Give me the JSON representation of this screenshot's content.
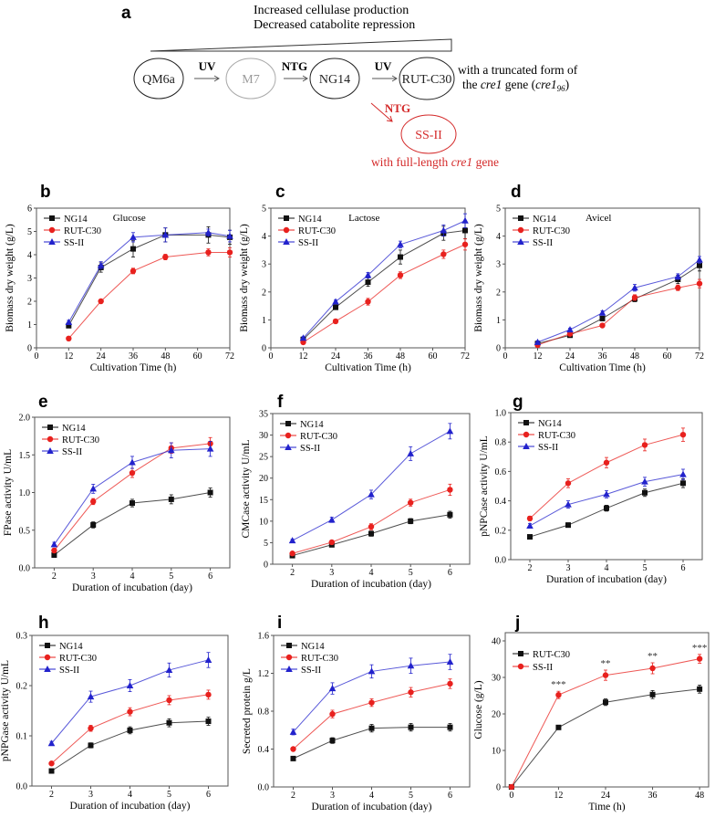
{
  "diagram": {
    "panel_label": "a",
    "top_line1": "Increased cellulase production",
    "top_line2": "Decreased catabolite repression",
    "nodes": [
      "QM6a",
      "M7",
      "NG14",
      "RUT-C30",
      "SS-II"
    ],
    "arrow_labels": [
      "UV",
      "NTG",
      "UV",
      "NTG"
    ],
    "rut_note_line1": "with a truncated form of",
    "rut_note_line2_parts": [
      "the ",
      "cre1",
      " gene (",
      "cre1",
      "96",
      ")"
    ],
    "ss_note_parts": [
      "with full-length ",
      "cre1",
      " gene"
    ],
    "colors": {
      "black": "#222222",
      "gray": "#9a9a9a",
      "red": "#d42a2a"
    }
  },
  "chart_data": [
    {
      "id": "b",
      "panel_label": "b",
      "type": "line",
      "title": "Glucose",
      "xlabel": "Cultivation Time (h)",
      "ylabel": "Biomass dry weight (g/L)",
      "xlim": [
        0,
        72
      ],
      "ylim": [
        0,
        6
      ],
      "xticks": [
        0,
        12,
        24,
        36,
        48,
        60,
        72
      ],
      "yticks": [
        0,
        1,
        2,
        3,
        4,
        5,
        6
      ],
      "ytick_fmt": 0,
      "x": [
        12,
        24,
        36,
        48,
        64,
        72
      ],
      "series": [
        {
          "name": "NG14",
          "marker": "square",
          "color": "#111111",
          "values": [
            0.95,
            3.45,
            4.25,
            4.85,
            4.85,
            4.75
          ],
          "err": [
            0.08,
            0.2,
            0.35,
            0.3,
            0.35,
            0.3
          ]
        },
        {
          "name": "RUT-C30",
          "marker": "circle",
          "color": "#e8211e",
          "values": [
            0.4,
            2.0,
            3.3,
            3.9,
            4.1,
            4.1
          ],
          "err": [
            0.05,
            0.08,
            0.12,
            0.12,
            0.15,
            0.2
          ]
        },
        {
          "name": "SS-II",
          "marker": "triangle",
          "color": "#2222cc",
          "values": [
            1.1,
            3.55,
            4.75,
            4.85,
            4.95,
            4.8
          ],
          "err": [
            0.08,
            0.15,
            0.2,
            0.3,
            0.15,
            0.25
          ]
        }
      ]
    },
    {
      "id": "c",
      "panel_label": "c",
      "type": "line",
      "title": "Lactose",
      "xlabel": "Cultivation Time (h)",
      "ylabel": "Biomass dry weight (g/L)",
      "xlim": [
        0,
        72
      ],
      "ylim": [
        0,
        5
      ],
      "xticks": [
        0,
        12,
        24,
        36,
        48,
        60,
        72
      ],
      "yticks": [
        0,
        1,
        2,
        3,
        4,
        5
      ],
      "ytick_fmt": 0,
      "x": [
        12,
        24,
        36,
        48,
        64,
        72
      ],
      "series": [
        {
          "name": "NG14",
          "marker": "square",
          "color": "#111111",
          "values": [
            0.3,
            1.45,
            2.35,
            3.25,
            4.1,
            4.2
          ],
          "err": [
            0.05,
            0.08,
            0.15,
            0.25,
            0.25,
            0.3
          ]
        },
        {
          "name": "RUT-C30",
          "marker": "circle",
          "color": "#e8211e",
          "values": [
            0.2,
            0.95,
            1.65,
            2.6,
            3.35,
            3.7
          ],
          "err": [
            0.05,
            0.05,
            0.12,
            0.12,
            0.15,
            0.2
          ]
        },
        {
          "name": "SS-II",
          "marker": "triangle",
          "color": "#2222cc",
          "values": [
            0.35,
            1.65,
            2.6,
            3.7,
            4.2,
            4.55
          ],
          "err": [
            0.05,
            0.06,
            0.1,
            0.12,
            0.2,
            0.25
          ]
        }
      ]
    },
    {
      "id": "d",
      "panel_label": "d",
      "type": "line",
      "title": "Avicel",
      "xlabel": "Cultivation Time (h)",
      "ylabel": "Biomass dry weight (g/L)",
      "xlim": [
        0,
        72
      ],
      "ylim": [
        0,
        5
      ],
      "xticks": [
        0,
        12,
        24,
        36,
        48,
        60,
        72
      ],
      "yticks": [
        0,
        1,
        2,
        3,
        4,
        5
      ],
      "ytick_fmt": 0,
      "x": [
        12,
        24,
        36,
        48,
        64,
        72
      ],
      "series": [
        {
          "name": "NG14",
          "marker": "square",
          "color": "#111111",
          "values": [
            0.15,
            0.45,
            1.05,
            1.75,
            2.45,
            2.95
          ],
          "err": [
            0.05,
            0.05,
            0.08,
            0.1,
            0.15,
            0.2
          ]
        },
        {
          "name": "RUT-C30",
          "marker": "circle",
          "color": "#e8211e",
          "values": [
            0.1,
            0.5,
            0.8,
            1.8,
            2.15,
            2.3
          ],
          "err": [
            0.05,
            0.05,
            0.06,
            0.1,
            0.1,
            0.15
          ]
        },
        {
          "name": "SS-II",
          "marker": "triangle",
          "color": "#2222cc",
          "values": [
            0.2,
            0.65,
            1.25,
            2.15,
            2.55,
            3.15
          ],
          "err": [
            0.05,
            0.05,
            0.08,
            0.12,
            0.1,
            0.12
          ]
        }
      ]
    },
    {
      "id": "e",
      "panel_label": "e",
      "type": "line",
      "title": "",
      "xlabel": "Duration of incubation (day)",
      "ylabel": "FPase activity U/mL",
      "xlim": [
        1.5,
        6.5
      ],
      "ylim": [
        0,
        2
      ],
      "xticks": [
        2,
        3,
        4,
        5,
        6
      ],
      "yticks": [
        0,
        0.5,
        1,
        1.5,
        2
      ],
      "ytick_fmt": 1,
      "x": [
        2,
        3,
        4,
        5,
        6
      ],
      "series": [
        {
          "name": "NG14",
          "marker": "square",
          "color": "#111111",
          "values": [
            0.17,
            0.57,
            0.86,
            0.91,
            1.0
          ],
          "err": [
            0.03,
            0.04,
            0.05,
            0.06,
            0.06
          ]
        },
        {
          "name": "RUT-C30",
          "marker": "circle",
          "color": "#e8211e",
          "values": [
            0.23,
            0.88,
            1.26,
            1.59,
            1.65
          ],
          "err": [
            0.03,
            0.04,
            0.06,
            0.07,
            0.08
          ]
        },
        {
          "name": "SS-II",
          "marker": "triangle",
          "color": "#2222cc",
          "values": [
            0.31,
            1.05,
            1.4,
            1.56,
            1.58
          ],
          "err": [
            0.03,
            0.06,
            0.08,
            0.1,
            0.1
          ]
        }
      ]
    },
    {
      "id": "f",
      "panel_label": "f",
      "type": "line",
      "title": "",
      "xlabel": "Duration of incubation (day)",
      "ylabel": "CMCase activity U/mL",
      "xlim": [
        1.5,
        6.5
      ],
      "ylim": [
        0,
        35
      ],
      "xticks": [
        2,
        3,
        4,
        5,
        6
      ],
      "yticks": [
        0,
        5,
        10,
        15,
        20,
        25,
        30,
        35
      ],
      "ytick_fmt": 0,
      "x": [
        2,
        3,
        4,
        5,
        6
      ],
      "series": [
        {
          "name": "NG14",
          "marker": "square",
          "color": "#111111",
          "values": [
            2.0,
            4.5,
            7.1,
            10.0,
            11.5
          ],
          "err": [
            0.3,
            0.4,
            0.6,
            0.6,
            0.8
          ]
        },
        {
          "name": "RUT-C30",
          "marker": "circle",
          "color": "#e8211e",
          "values": [
            2.5,
            5.1,
            8.7,
            14.3,
            17.3
          ],
          "err": [
            0.3,
            0.4,
            0.7,
            0.8,
            1.3
          ]
        },
        {
          "name": "SS-II",
          "marker": "triangle",
          "color": "#2222cc",
          "values": [
            5.5,
            10.3,
            16.2,
            25.7,
            30.9
          ],
          "err": [
            0.3,
            0.6,
            1.0,
            1.6,
            1.8
          ]
        }
      ]
    },
    {
      "id": "g",
      "panel_label": "g",
      "type": "line",
      "title": "",
      "xlabel": "Duration of incubation (day)",
      "ylabel": "pNPCase activity U/mL",
      "xlim": [
        1.5,
        6.5
      ],
      "ylim": [
        0,
        1
      ],
      "xticks": [
        2,
        3,
        4,
        5,
        6
      ],
      "yticks": [
        0,
        0.2,
        0.4,
        0.6,
        0.8,
        1.0
      ],
      "ytick_fmt": 1,
      "x": [
        2,
        3,
        4,
        5,
        6
      ],
      "series": [
        {
          "name": "NG14",
          "marker": "square",
          "color": "#111111",
          "values": [
            0.155,
            0.235,
            0.35,
            0.455,
            0.52
          ],
          "err": [
            0.01,
            0.015,
            0.02,
            0.025,
            0.03
          ]
        },
        {
          "name": "RUT-C30",
          "marker": "circle",
          "color": "#e8211e",
          "values": [
            0.28,
            0.52,
            0.66,
            0.78,
            0.85
          ],
          "err": [
            0.015,
            0.03,
            0.035,
            0.04,
            0.045
          ]
        },
        {
          "name": "SS-II",
          "marker": "triangle",
          "color": "#2222cc",
          "values": [
            0.23,
            0.375,
            0.445,
            0.53,
            0.58
          ],
          "err": [
            0.015,
            0.025,
            0.025,
            0.03,
            0.035
          ]
        }
      ]
    },
    {
      "id": "h",
      "panel_label": "h",
      "type": "line",
      "title": "",
      "xlabel": "Duration of incubation (day)",
      "ylabel": "pNPGase activity U/mL",
      "xlim": [
        1.5,
        6.5
      ],
      "ylim": [
        0,
        0.3
      ],
      "xticks": [
        2,
        3,
        4,
        5,
        6
      ],
      "yticks": [
        0,
        0.1,
        0.2,
        0.3
      ],
      "ytick_fmt": 1,
      "x": [
        2,
        3,
        4,
        5,
        6
      ],
      "series": [
        {
          "name": "NG14",
          "marker": "square",
          "color": "#111111",
          "values": [
            0.03,
            0.081,
            0.111,
            0.126,
            0.129
          ],
          "err": [
            0.002,
            0.005,
            0.007,
            0.008,
            0.008
          ]
        },
        {
          "name": "RUT-C30",
          "marker": "circle",
          "color": "#e8211e",
          "values": [
            0.045,
            0.115,
            0.148,
            0.171,
            0.182
          ],
          "err": [
            0.003,
            0.006,
            0.008,
            0.009,
            0.009
          ]
        },
        {
          "name": "SS-II",
          "marker": "triangle",
          "color": "#2222cc",
          "values": [
            0.085,
            0.178,
            0.2,
            0.231,
            0.251
          ],
          "err": [
            0.004,
            0.011,
            0.012,
            0.014,
            0.015
          ]
        }
      ]
    },
    {
      "id": "i",
      "panel_label": "i",
      "type": "line",
      "title": "",
      "xlabel": "Duration of incubation (day)",
      "ylabel": "Secreted protein g/L",
      "xlim": [
        1.5,
        6.5
      ],
      "ylim": [
        0,
        1.6
      ],
      "xticks": [
        2,
        3,
        4,
        5,
        6
      ],
      "yticks": [
        0,
        0.4,
        0.8,
        1.2,
        1.6
      ],
      "ytick_fmt": 1,
      "x": [
        2,
        3,
        4,
        5,
        6
      ],
      "series": [
        {
          "name": "NG14",
          "marker": "square",
          "color": "#111111",
          "values": [
            0.3,
            0.49,
            0.62,
            0.63,
            0.63
          ],
          "err": [
            0.02,
            0.03,
            0.04,
            0.04,
            0.04
          ]
        },
        {
          "name": "RUT-C30",
          "marker": "circle",
          "color": "#e8211e",
          "values": [
            0.4,
            0.77,
            0.89,
            1.0,
            1.09
          ],
          "err": [
            0.02,
            0.04,
            0.04,
            0.05,
            0.05
          ]
        },
        {
          "name": "SS-II",
          "marker": "triangle",
          "color": "#2222cc",
          "values": [
            0.58,
            1.04,
            1.22,
            1.28,
            1.32
          ],
          "err": [
            0.03,
            0.06,
            0.07,
            0.08,
            0.08
          ]
        }
      ]
    },
    {
      "id": "j",
      "panel_label": "j",
      "type": "line",
      "title": "",
      "xlabel": "Time (h)",
      "ylabel": "Glucose  (g/L)",
      "xlim": [
        0,
        49
      ],
      "ylim": [
        0,
        42.5
      ],
      "xticks": [
        0,
        12,
        24,
        36,
        48
      ],
      "yticks": [
        0,
        10,
        20,
        30,
        40
      ],
      "ytick_fmt": 0,
      "x": [
        0,
        12,
        24,
        36,
        48
      ],
      "series": [
        {
          "name": "RUT-C30",
          "marker": "square",
          "color": "#111111",
          "values": [
            0,
            16.3,
            23.2,
            25.3,
            26.8
          ],
          "err": [
            0,
            0.5,
            0.9,
            1.1,
            1.1
          ]
        },
        {
          "name": "SS-II",
          "marker": "circle",
          "color": "#e8211e",
          "values": [
            0,
            25.2,
            30.6,
            32.5,
            35.1
          ],
          "err": [
            0,
            1.0,
            1.4,
            1.5,
            1.2
          ]
        }
      ],
      "annotations": [
        {
          "x": 12,
          "text": "***"
        },
        {
          "x": 24,
          "text": "**"
        },
        {
          "x": 36,
          "text": "**"
        },
        {
          "x": 48,
          "text": "***"
        }
      ]
    }
  ]
}
